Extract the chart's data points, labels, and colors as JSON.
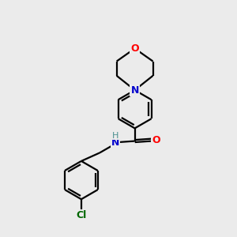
{
  "background_color": "#ebebeb",
  "line_color": "#000000",
  "bond_lw": 1.6,
  "atom_colors": {
    "O": "#ff0000",
    "N": "#0000cc",
    "Cl": "#006600",
    "H": "#4a9090"
  },
  "font_size": 9,
  "dpi": 100,
  "figsize": [
    3.0,
    3.0
  ]
}
